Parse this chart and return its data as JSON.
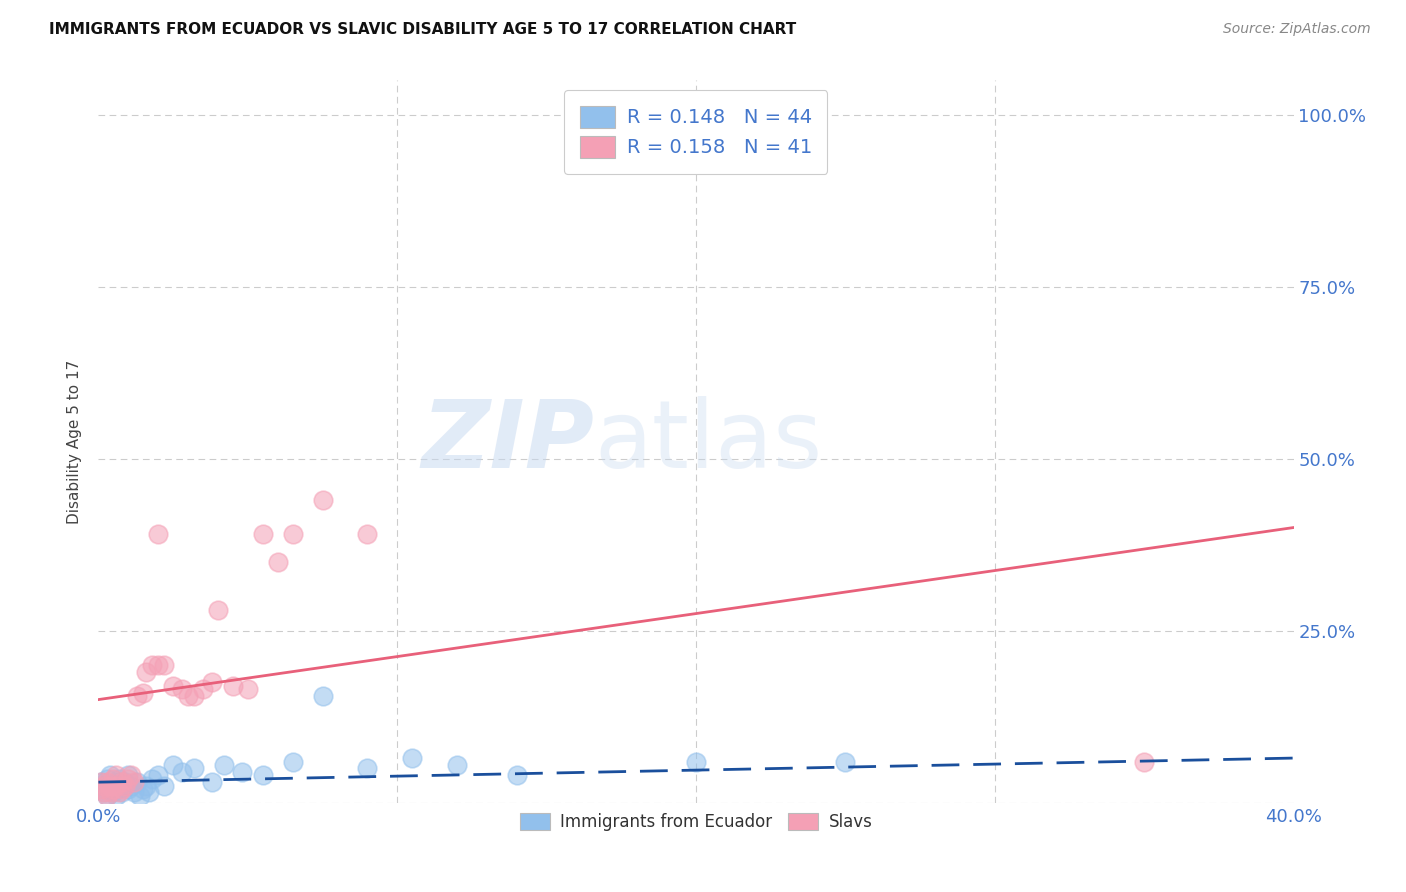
{
  "title": "IMMIGRANTS FROM ECUADOR VS SLAVIC DISABILITY AGE 5 TO 17 CORRELATION CHART",
  "source": "Source: ZipAtlas.com",
  "ylabel": "Disability Age 5 to 17",
  "xlim": [
    0.0,
    0.4
  ],
  "ylim": [
    0.0,
    1.05
  ],
  "xticks": [
    0.0,
    0.1,
    0.2,
    0.3,
    0.4
  ],
  "xticklabels": [
    "0.0%",
    "",
    "",
    "",
    "40.0%"
  ],
  "ytick_positions": [
    0.0,
    0.25,
    0.5,
    0.75,
    1.0
  ],
  "ytick_labels": [
    "",
    "25.0%",
    "50.0%",
    "75.0%",
    "100.0%"
  ],
  "blue_color": "#92C0EC",
  "pink_color": "#F4A0B5",
  "blue_line_color": "#1A4F9C",
  "pink_line_color": "#E8607A",
  "watermark_zip": "ZIP",
  "watermark_atlas": "atlas",
  "ecuador_x": [
    0.001,
    0.001,
    0.002,
    0.002,
    0.003,
    0.003,
    0.004,
    0.004,
    0.005,
    0.005,
    0.006,
    0.006,
    0.007,
    0.007,
    0.008,
    0.008,
    0.009,
    0.01,
    0.01,
    0.011,
    0.012,
    0.013,
    0.014,
    0.015,
    0.016,
    0.017,
    0.018,
    0.02,
    0.022,
    0.025,
    0.028,
    0.032,
    0.038,
    0.042,
    0.048,
    0.055,
    0.065,
    0.075,
    0.09,
    0.105,
    0.12,
    0.14,
    0.2,
    0.25
  ],
  "ecuador_y": [
    0.02,
    0.03,
    0.015,
    0.025,
    0.01,
    0.035,
    0.02,
    0.04,
    0.015,
    0.025,
    0.03,
    0.01,
    0.02,
    0.035,
    0.015,
    0.025,
    0.03,
    0.02,
    0.04,
    0.025,
    0.015,
    0.03,
    0.01,
    0.02,
    0.025,
    0.015,
    0.035,
    0.04,
    0.025,
    0.055,
    0.045,
    0.05,
    0.03,
    0.055,
    0.045,
    0.04,
    0.06,
    0.155,
    0.05,
    0.065,
    0.055,
    0.04,
    0.06,
    0.06
  ],
  "slavic_x": [
    0.001,
    0.001,
    0.002,
    0.002,
    0.003,
    0.003,
    0.004,
    0.004,
    0.005,
    0.005,
    0.006,
    0.006,
    0.007,
    0.008,
    0.008,
    0.009,
    0.01,
    0.011,
    0.012,
    0.013,
    0.015,
    0.016,
    0.018,
    0.02,
    0.022,
    0.025,
    0.028,
    0.03,
    0.032,
    0.035,
    0.038,
    0.04,
    0.045,
    0.05,
    0.055,
    0.06,
    0.065,
    0.075,
    0.09,
    0.35,
    0.02
  ],
  "slavic_y": [
    0.03,
    0.02,
    0.025,
    0.015,
    0.03,
    0.01,
    0.025,
    0.015,
    0.02,
    0.035,
    0.025,
    0.04,
    0.015,
    0.02,
    0.03,
    0.025,
    0.035,
    0.04,
    0.03,
    0.155,
    0.16,
    0.19,
    0.2,
    0.2,
    0.2,
    0.17,
    0.165,
    0.155,
    0.155,
    0.165,
    0.175,
    0.28,
    0.17,
    0.165,
    0.39,
    0.35,
    0.39,
    0.44,
    0.39,
    0.06,
    0.39
  ],
  "grid_color": "#CCCCCC",
  "background_color": "#FFFFFF"
}
